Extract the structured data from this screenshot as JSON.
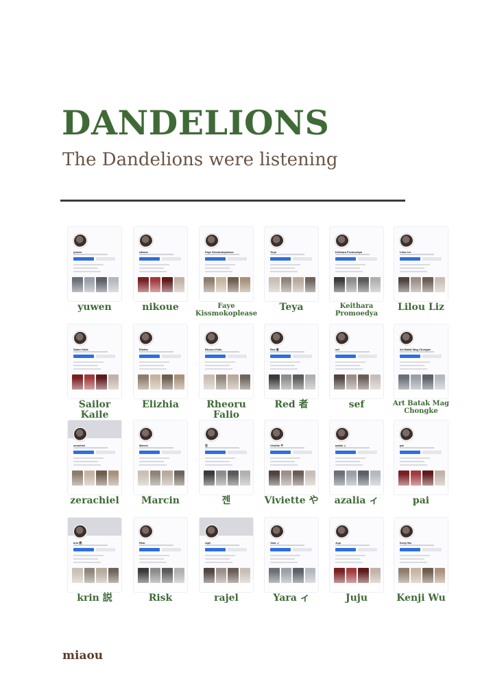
{
  "page": {
    "title": "DANDELIONS",
    "subtitle": "The Dandelions were listening",
    "author": "miaou"
  },
  "profiles": [
    {
      "card_name": "yuwen",
      "caption": "yuwen"
    },
    {
      "card_name": "nikoue",
      "caption": "nikoue"
    },
    {
      "card_name": "Faye Kissmokoplease",
      "caption": "Faye Kissmokoplease"
    },
    {
      "card_name": "Teya",
      "caption": "Teya"
    },
    {
      "card_name": "Keithara Promoedya",
      "caption": "Keithara Promoedya"
    },
    {
      "card_name": "Lilou Liz",
      "caption": "Lilou Liz"
    },
    {
      "card_name": "Sailor Kaile",
      "caption": "Sailor Kaile"
    },
    {
      "card_name": "Elizhia",
      "caption": "Elizhia"
    },
    {
      "card_name": "Rheoru Falio",
      "caption": "Rheoru Falio"
    },
    {
      "card_name": "Red 者",
      "caption": "Red 者"
    },
    {
      "card_name": "sef",
      "caption": "sef"
    },
    {
      "card_name": "Art Batak Mag Chongke",
      "caption": "Art Batak Mag Chongke"
    },
    {
      "card_name": "zerachiel",
      "caption": "zerachiel"
    },
    {
      "card_name": "Marcin",
      "caption": "Marcin"
    },
    {
      "card_name": "젠",
      "caption": "젠"
    },
    {
      "card_name": "Viviette や",
      "caption": "Viviette や"
    },
    {
      "card_name": "azalia ィ",
      "caption": "azalia ィ"
    },
    {
      "card_name": "pai",
      "caption": "pai"
    },
    {
      "card_name": "krin 説",
      "caption": "krin 説"
    },
    {
      "card_name": "Risk",
      "caption": "Risk"
    },
    {
      "card_name": "rajel",
      "caption": "rajel"
    },
    {
      "card_name": "Yara ィ",
      "caption": "Yara ィ"
    },
    {
      "card_name": "Juju",
      "caption": "Juju"
    },
    {
      "card_name": "Kenji Wu",
      "caption": "Kenji Wu"
    }
  ],
  "colors": {
    "title": "#3f6a37",
    "subtitle": "#6a5444",
    "caption": "#3f6a37",
    "author": "#5a3e2b",
    "button_primary": "#2d6fe0"
  }
}
